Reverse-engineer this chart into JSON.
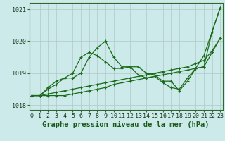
{
  "title": "Graphe pression niveau de la mer (hPa)",
  "x_values": [
    0,
    1,
    2,
    3,
    4,
    5,
    6,
    7,
    8,
    9,
    10,
    11,
    12,
    13,
    14,
    15,
    16,
    17,
    18,
    19,
    20,
    21,
    22,
    23
  ],
  "series": [
    [
      1018.3,
      1018.3,
      1018.35,
      1018.4,
      1018.45,
      1018.5,
      1018.55,
      1018.6,
      1018.65,
      1018.7,
      1018.75,
      1018.8,
      1018.85,
      1018.9,
      1018.95,
      1019.0,
      1019.05,
      1019.1,
      1019.15,
      1019.2,
      1019.3,
      1019.4,
      1019.7,
      1020.1
    ],
    [
      1018.3,
      1018.3,
      1018.55,
      1018.75,
      1018.85,
      1018.85,
      1019.0,
      1019.5,
      1019.8,
      1020.0,
      1019.5,
      1019.2,
      1019.2,
      1019.2,
      1019.0,
      1018.95,
      1018.75,
      1018.75,
      1018.45,
      1018.75,
      1019.15,
      1019.2,
      1020.3,
      1021.05
    ],
    [
      1018.3,
      1018.3,
      1018.5,
      1018.65,
      1018.85,
      1019.0,
      1019.5,
      1019.65,
      1019.55,
      1019.35,
      1019.15,
      1019.15,
      1019.2,
      1018.95,
      1018.85,
      1018.9,
      1018.7,
      1018.55,
      1018.5,
      1018.85,
      1019.15,
      1019.55,
      1020.3,
      1021.05
    ],
    [
      1018.3,
      1018.3,
      1018.3,
      1018.3,
      1018.3,
      1018.35,
      1018.4,
      1018.45,
      1018.5,
      1018.55,
      1018.65,
      1018.7,
      1018.75,
      1018.8,
      1018.85,
      1018.9,
      1018.95,
      1019.0,
      1019.05,
      1019.1,
      1019.15,
      1019.2,
      1019.65,
      1020.1
    ]
  ],
  "line_color": "#1a6b1a",
  "bg_color": "#cceaea",
  "grid_color": "#b0c8c8",
  "ylim": [
    1017.85,
    1021.2
  ],
  "yticks": [
    1018,
    1019,
    1020,
    1021
  ],
  "xticks": [
    0,
    1,
    2,
    3,
    4,
    5,
    6,
    7,
    8,
    9,
    10,
    11,
    12,
    13,
    14,
    15,
    16,
    17,
    18,
    19,
    20,
    21,
    22,
    23
  ],
  "marker": "+",
  "marker_size": 3.5,
  "linewidth": 0.9,
  "title_fontsize": 7.5,
  "tick_fontsize": 6.0
}
